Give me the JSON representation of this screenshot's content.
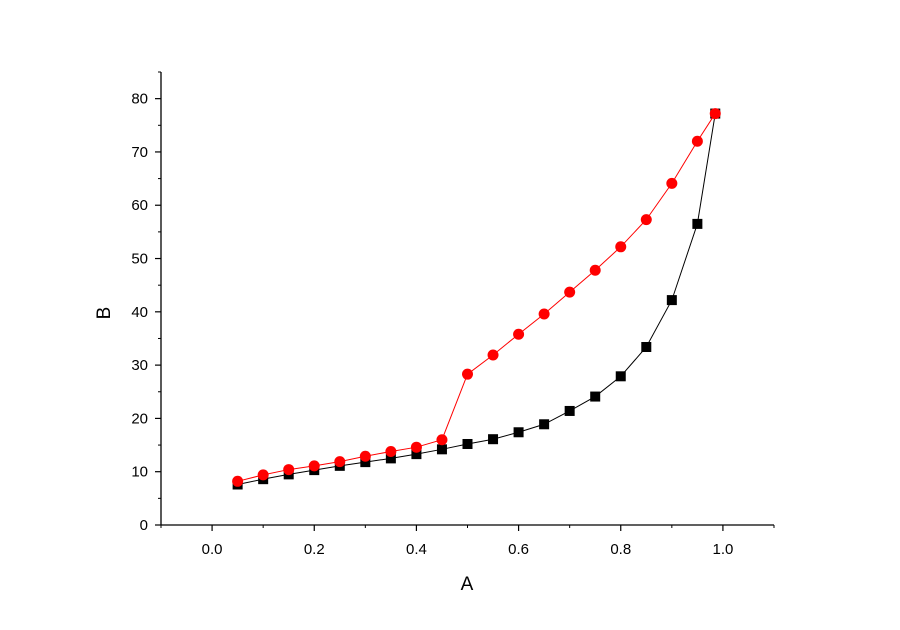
{
  "chart_data": {
    "type": "line",
    "xlabel": "A",
    "ylabel": "B",
    "xlim": [
      -0.1,
      1.1
    ],
    "ylim": [
      0,
      85
    ],
    "x_ticks": [
      "0.0",
      "0.2",
      "0.4",
      "0.6",
      "0.8",
      "1.0"
    ],
    "y_ticks": [
      "0",
      "10",
      "20",
      "30",
      "40",
      "50",
      "60",
      "70",
      "80"
    ],
    "grid": false,
    "series": [
      {
        "color": "#000000",
        "marker": "square",
        "x": [
          0.05,
          0.1,
          0.15,
          0.2,
          0.25,
          0.3,
          0.35,
          0.4,
          0.45,
          0.5,
          0.55,
          0.6,
          0.65,
          0.7,
          0.75,
          0.8,
          0.85,
          0.9,
          0.95,
          0.985
        ],
        "y": [
          7.6,
          8.6,
          9.5,
          10.3,
          11.1,
          11.8,
          12.5,
          13.3,
          14.2,
          15.2,
          16.1,
          17.4,
          18.9,
          21.4,
          24.1,
          27.9,
          33.4,
          42.2,
          56.5,
          77.2
        ]
      },
      {
        "color": "#ff0000",
        "marker": "circle",
        "x": [
          0.05,
          0.1,
          0.15,
          0.2,
          0.25,
          0.3,
          0.35,
          0.4,
          0.45,
          0.5,
          0.55,
          0.6,
          0.65,
          0.7,
          0.75,
          0.8,
          0.85,
          0.9,
          0.95,
          0.985
        ],
        "y": [
          8.2,
          9.4,
          10.4,
          11.1,
          11.9,
          12.9,
          13.8,
          14.6,
          16.0,
          28.3,
          31.9,
          35.8,
          39.6,
          43.7,
          47.8,
          52.2,
          57.3,
          64.1,
          72.0,
          77.2
        ]
      }
    ]
  }
}
